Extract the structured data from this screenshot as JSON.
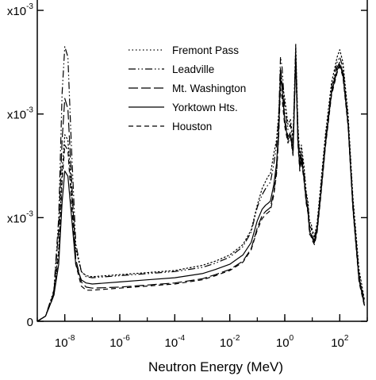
{
  "chart_data": {
    "type": "line",
    "title": "",
    "xlabel": "Neutron Energy (MeV)",
    "ylabel": "",
    "x_scale": "log",
    "xlim": [
      1e-09,
      1000
    ],
    "ylim": [
      0,
      3.1
    ],
    "x_ticks": [
      {
        "value": 1e-08,
        "base": "10",
        "exp": "-8"
      },
      {
        "value": 1e-06,
        "base": "10",
        "exp": "-6"
      },
      {
        "value": 0.0001,
        "base": "10",
        "exp": "-4"
      },
      {
        "value": 0.01,
        "base": "10",
        "exp": "-2"
      },
      {
        "value": 1,
        "base": "10",
        "exp": "0"
      },
      {
        "value": 100,
        "base": "10",
        "exp": "2"
      }
    ],
    "y_ticks": [
      {
        "value": 0,
        "label": "0"
      },
      {
        "value": 1,
        "label": "x10",
        "exp": "-3"
      },
      {
        "value": 2,
        "label": "x10",
        "exp": "-3"
      },
      {
        "value": 3,
        "label": "x10",
        "exp": "-3"
      }
    ],
    "legend": {
      "position": "top-center"
    },
    "series": [
      {
        "name": "Fremont Pass",
        "style": "dotted",
        "points": [
          [
            1e-09,
            0
          ],
          [
            2e-09,
            0.05
          ],
          [
            4e-09,
            0.25
          ],
          [
            6e-09,
            0.7
          ],
          [
            8e-09,
            1.45
          ],
          [
            1e-08,
            1.8
          ],
          [
            1.3e-08,
            1.75
          ],
          [
            1.7e-08,
            1.3
          ],
          [
            2.5e-08,
            0.7
          ],
          [
            4e-08,
            0.48
          ],
          [
            6e-08,
            0.44
          ],
          [
            1e-07,
            0.43
          ],
          [
            1e-06,
            0.45
          ],
          [
            1e-05,
            0.47
          ],
          [
            0.0001,
            0.49
          ],
          [
            0.001,
            0.54
          ],
          [
            0.003,
            0.58
          ],
          [
            0.01,
            0.64
          ],
          [
            0.03,
            0.74
          ],
          [
            0.06,
            0.88
          ],
          [
            0.1,
            1.12
          ],
          [
            0.15,
            1.28
          ],
          [
            0.2,
            1.35
          ],
          [
            0.25,
            1.4
          ],
          [
            0.3,
            1.42
          ],
          [
            0.4,
            1.62
          ],
          [
            0.5,
            1.75
          ],
          [
            0.6,
            2.0
          ],
          [
            0.7,
            2.35
          ],
          [
            0.8,
            2.3
          ],
          [
            1.0,
            2.15
          ],
          [
            1.3,
            1.9
          ],
          [
            1.6,
            1.95
          ],
          [
            2.0,
            1.75
          ],
          [
            2.5,
            2.68
          ],
          [
            3.0,
            1.9
          ],
          [
            3.5,
            1.6
          ],
          [
            4.0,
            1.7
          ],
          [
            5.0,
            1.5
          ],
          [
            6.0,
            1.25
          ],
          [
            7.0,
            1.15
          ],
          [
            8.0,
            0.95
          ],
          [
            9.0,
            0.95
          ],
          [
            10,
            0.88
          ],
          [
            12,
            0.82
          ],
          [
            15,
            0.95
          ],
          [
            20,
            1.3
          ],
          [
            30,
            1.8
          ],
          [
            50,
            2.3
          ],
          [
            80,
            2.55
          ],
          [
            100,
            2.62
          ],
          [
            130,
            2.5
          ],
          [
            200,
            2.0
          ],
          [
            300,
            1.2
          ],
          [
            500,
            0.5
          ],
          [
            800,
            0.2
          ]
        ]
      },
      {
        "name": "Leadville",
        "style": "dash-dot-dot",
        "points": [
          [
            1e-09,
            0
          ],
          [
            2e-09,
            0.05
          ],
          [
            4e-09,
            0.3
          ],
          [
            6e-09,
            1.0
          ],
          [
            8e-09,
            2.2
          ],
          [
            1e-08,
            2.65
          ],
          [
            1.3e-08,
            2.55
          ],
          [
            1.7e-08,
            1.75
          ],
          [
            2.5e-08,
            0.75
          ],
          [
            4e-08,
            0.48
          ],
          [
            6e-08,
            0.43
          ],
          [
            1e-07,
            0.42
          ],
          [
            1e-06,
            0.44
          ],
          [
            1e-05,
            0.46
          ],
          [
            0.0001,
            0.48
          ],
          [
            0.001,
            0.52
          ],
          [
            0.003,
            0.56
          ],
          [
            0.01,
            0.62
          ],
          [
            0.03,
            0.72
          ],
          [
            0.06,
            0.86
          ],
          [
            0.1,
            1.1
          ],
          [
            0.15,
            1.22
          ],
          [
            0.2,
            1.28
          ],
          [
            0.25,
            1.32
          ],
          [
            0.3,
            1.34
          ],
          [
            0.4,
            1.52
          ],
          [
            0.5,
            1.7
          ],
          [
            0.6,
            1.95
          ],
          [
            0.7,
            2.55
          ],
          [
            0.8,
            2.45
          ],
          [
            1.0,
            2.05
          ],
          [
            1.3,
            1.85
          ],
          [
            1.6,
            1.9
          ],
          [
            2.0,
            1.72
          ],
          [
            2.5,
            2.65
          ],
          [
            3.0,
            1.85
          ],
          [
            3.5,
            1.55
          ],
          [
            4.0,
            1.65
          ],
          [
            5.0,
            1.45
          ],
          [
            6.0,
            1.22
          ],
          [
            7.0,
            1.12
          ],
          [
            8.0,
            0.92
          ],
          [
            9.0,
            0.9
          ],
          [
            10,
            0.85
          ],
          [
            12,
            0.8
          ],
          [
            15,
            0.92
          ],
          [
            20,
            1.25
          ],
          [
            30,
            1.75
          ],
          [
            50,
            2.25
          ],
          [
            80,
            2.5
          ],
          [
            100,
            2.55
          ],
          [
            130,
            2.45
          ],
          [
            200,
            1.95
          ],
          [
            300,
            1.15
          ],
          [
            500,
            0.45
          ],
          [
            800,
            0.18
          ]
        ]
      },
      {
        "name": "Mt. Washington",
        "style": "long-dash",
        "points": [
          [
            1e-09,
            0
          ],
          [
            2e-09,
            0.05
          ],
          [
            4e-09,
            0.28
          ],
          [
            6e-09,
            0.9
          ],
          [
            8e-09,
            1.75
          ],
          [
            1e-08,
            2.15
          ],
          [
            1.3e-08,
            2.05
          ],
          [
            1.7e-08,
            1.45
          ],
          [
            2.5e-08,
            0.6
          ],
          [
            4e-08,
            0.38
          ],
          [
            6e-08,
            0.33
          ],
          [
            1e-07,
            0.32
          ],
          [
            1e-06,
            0.33
          ],
          [
            1e-05,
            0.35
          ],
          [
            0.0001,
            0.37
          ],
          [
            0.001,
            0.41
          ],
          [
            0.003,
            0.45
          ],
          [
            0.01,
            0.5
          ],
          [
            0.03,
            0.58
          ],
          [
            0.06,
            0.7
          ],
          [
            0.1,
            0.9
          ],
          [
            0.15,
            1.02
          ],
          [
            0.2,
            1.06
          ],
          [
            0.25,
            1.08
          ],
          [
            0.3,
            1.1
          ],
          [
            0.4,
            1.25
          ],
          [
            0.5,
            1.45
          ],
          [
            0.6,
            1.8
          ],
          [
            0.7,
            2.45
          ],
          [
            0.8,
            2.3
          ],
          [
            1.0,
            1.95
          ],
          [
            1.3,
            1.78
          ],
          [
            1.6,
            1.82
          ],
          [
            2.0,
            1.65
          ],
          [
            2.5,
            2.6
          ],
          [
            3.0,
            1.78
          ],
          [
            3.5,
            1.5
          ],
          [
            4.0,
            1.6
          ],
          [
            5.0,
            1.4
          ],
          [
            6.0,
            1.18
          ],
          [
            7.0,
            1.08
          ],
          [
            8.0,
            0.88
          ],
          [
            9.0,
            0.86
          ],
          [
            10,
            0.82
          ],
          [
            12,
            0.78
          ],
          [
            15,
            0.9
          ],
          [
            20,
            1.22
          ],
          [
            30,
            1.72
          ],
          [
            50,
            2.22
          ],
          [
            80,
            2.45
          ],
          [
            100,
            2.5
          ],
          [
            130,
            2.4
          ],
          [
            200,
            1.92
          ],
          [
            300,
            1.12
          ],
          [
            500,
            0.42
          ],
          [
            800,
            0.16
          ]
        ]
      },
      {
        "name": "Yorktown Hts.",
        "style": "solid",
        "points": [
          [
            1e-09,
            0
          ],
          [
            2e-09,
            0.05
          ],
          [
            4e-09,
            0.25
          ],
          [
            6e-09,
            0.55
          ],
          [
            8e-09,
            1.15
          ],
          [
            1e-08,
            1.45
          ],
          [
            1.3e-08,
            1.4
          ],
          [
            1.7e-08,
            1.05
          ],
          [
            2.5e-08,
            0.55
          ],
          [
            4e-08,
            0.4
          ],
          [
            6e-08,
            0.37
          ],
          [
            1e-07,
            0.36
          ],
          [
            1e-06,
            0.38
          ],
          [
            1e-05,
            0.4
          ],
          [
            0.0001,
            0.42
          ],
          [
            0.001,
            0.46
          ],
          [
            0.003,
            0.5
          ],
          [
            0.01,
            0.55
          ],
          [
            0.03,
            0.64
          ],
          [
            0.06,
            0.76
          ],
          [
            0.1,
            0.97
          ],
          [
            0.15,
            1.08
          ],
          [
            0.2,
            1.12
          ],
          [
            0.25,
            1.14
          ],
          [
            0.3,
            1.16
          ],
          [
            0.4,
            1.32
          ],
          [
            0.5,
            1.52
          ],
          [
            0.6,
            1.85
          ],
          [
            0.7,
            2.35
          ],
          [
            0.8,
            2.25
          ],
          [
            1.0,
            1.92
          ],
          [
            1.3,
            1.75
          ],
          [
            1.6,
            1.8
          ],
          [
            2.0,
            1.62
          ],
          [
            2.5,
            2.55
          ],
          [
            3.0,
            1.75
          ],
          [
            3.5,
            1.48
          ],
          [
            4.0,
            1.58
          ],
          [
            5.0,
            1.38
          ],
          [
            6.0,
            1.16
          ],
          [
            7.0,
            1.06
          ],
          [
            8.0,
            0.86
          ],
          [
            9.0,
            0.84
          ],
          [
            10,
            0.8
          ],
          [
            12,
            0.76
          ],
          [
            15,
            0.88
          ],
          [
            20,
            1.2
          ],
          [
            30,
            1.7
          ],
          [
            50,
            2.2
          ],
          [
            80,
            2.42
          ],
          [
            100,
            2.48
          ],
          [
            130,
            2.38
          ],
          [
            200,
            1.9
          ],
          [
            300,
            1.1
          ],
          [
            500,
            0.4
          ],
          [
            800,
            0.15
          ]
        ]
      },
      {
        "name": "Houston",
        "style": "dashed",
        "points": [
          [
            1e-09,
            0
          ],
          [
            2e-09,
            0.05
          ],
          [
            4e-09,
            0.25
          ],
          [
            6e-09,
            0.65
          ],
          [
            8e-09,
            1.35
          ],
          [
            1e-08,
            1.7
          ],
          [
            1.3e-08,
            1.65
          ],
          [
            1.7e-08,
            1.2
          ],
          [
            2.5e-08,
            0.55
          ],
          [
            4e-08,
            0.34
          ],
          [
            6e-08,
            0.3
          ],
          [
            1e-07,
            0.3
          ],
          [
            1e-06,
            0.32
          ],
          [
            1e-05,
            0.34
          ],
          [
            0.0001,
            0.36
          ],
          [
            0.001,
            0.4
          ],
          [
            0.003,
            0.44
          ],
          [
            0.01,
            0.49
          ],
          [
            0.03,
            0.57
          ],
          [
            0.06,
            0.69
          ],
          [
            0.1,
            0.88
          ],
          [
            0.15,
            0.99
          ],
          [
            0.2,
            1.03
          ],
          [
            0.25,
            1.05
          ],
          [
            0.3,
            1.07
          ],
          [
            0.4,
            1.22
          ],
          [
            0.5,
            1.42
          ],
          [
            0.6,
            1.78
          ],
          [
            0.7,
            2.25
          ],
          [
            0.8,
            2.15
          ],
          [
            1.0,
            1.88
          ],
          [
            1.3,
            1.72
          ],
          [
            1.6,
            1.78
          ],
          [
            2.0,
            1.6
          ],
          [
            2.5,
            2.52
          ],
          [
            3.0,
            1.72
          ],
          [
            3.5,
            1.45
          ],
          [
            4.0,
            1.55
          ],
          [
            5.0,
            1.36
          ],
          [
            6.0,
            1.14
          ],
          [
            7.0,
            1.04
          ],
          [
            8.0,
            0.84
          ],
          [
            9.0,
            0.82
          ],
          [
            10,
            0.78
          ],
          [
            12,
            0.74
          ],
          [
            15,
            0.86
          ],
          [
            20,
            1.18
          ],
          [
            30,
            1.68
          ],
          [
            50,
            2.18
          ],
          [
            80,
            2.4
          ],
          [
            100,
            2.46
          ],
          [
            130,
            2.36
          ],
          [
            200,
            1.88
          ],
          [
            300,
            1.08
          ],
          [
            500,
            0.38
          ],
          [
            800,
            0.14
          ]
        ]
      }
    ]
  }
}
